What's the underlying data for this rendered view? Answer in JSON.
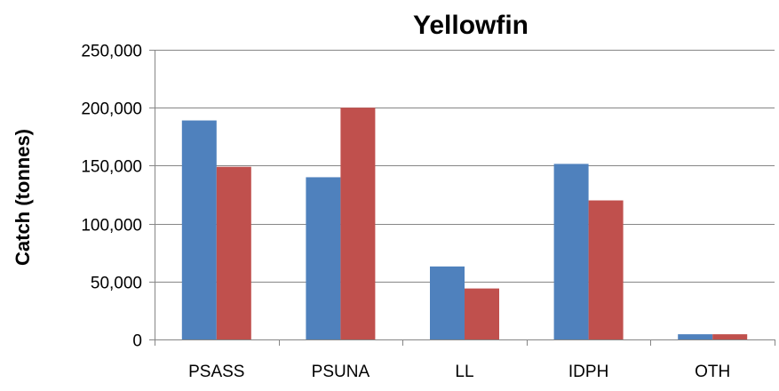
{
  "chart_data": {
    "type": "bar",
    "title": "Yellowfin",
    "xlabel": "",
    "ylabel": "Catch (tonnes)",
    "categories": [
      "PSASS",
      "PSUNA",
      "LL",
      "IDPH",
      "OTH"
    ],
    "series": [
      {
        "values": [
          189000,
          140000,
          63000,
          151500,
          4500
        ],
        "color": "#4f81bd"
      },
      {
        "values": [
          149000,
          200000,
          44000,
          120000,
          4500
        ],
        "color": "#c0504d"
      }
    ],
    "ylim": [
      0,
      250000
    ],
    "yticks": [
      0,
      50000,
      100000,
      150000,
      200000,
      250000
    ],
    "ytick_labels": [
      "0",
      "50,000",
      "100,000",
      "150,000",
      "200,000",
      "250,000"
    ],
    "grid": true,
    "legend": "none"
  }
}
